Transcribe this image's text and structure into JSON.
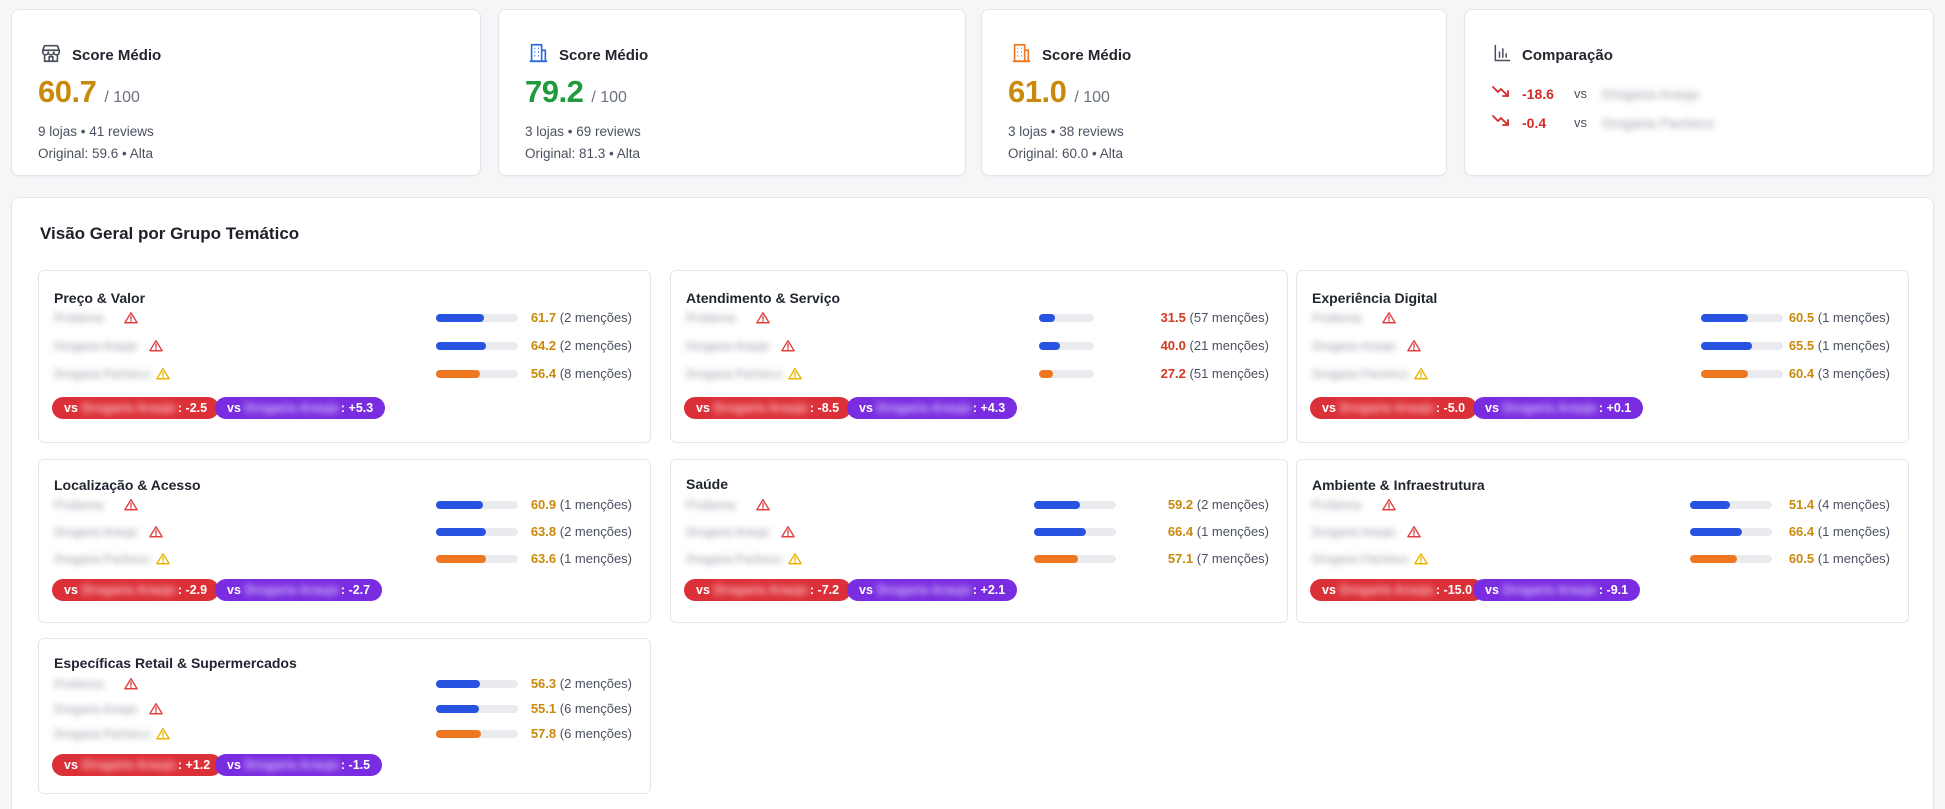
{
  "colors": {
    "score_gold": "#c98a0c",
    "score_green": "#1f9a3c",
    "value_gold": "#c98a0c",
    "value_red": "#d23a1f",
    "bar_blue": "#2853e0",
    "bar_orange": "#f07722",
    "pill_red": "#dc3038",
    "pill_purple": "#7a2de0",
    "warn_red": "#e04040",
    "warn_yellow": "#e8b400"
  },
  "stat_cards": [
    {
      "icon": "store-icon",
      "icon_color": "#4a4f5c",
      "title": "Score Médio",
      "score": "60.7",
      "score_color": "#c98a0c",
      "suffix": "/ 100",
      "line1": "9 lojas • 41 reviews",
      "line2": "Original: 59.6 • Alta"
    },
    {
      "icon": "building-icon",
      "icon_color": "#2f6be0",
      "title": "Score Médio",
      "score": "79.2",
      "score_color": "#1f9a3c",
      "suffix": "/ 100",
      "line1": "3 lojas • 69 reviews",
      "line2": "Original: 81.3 • Alta"
    },
    {
      "icon": "building-icon",
      "icon_color": "#f07722",
      "title": "Score Médio",
      "score": "61.0",
      "score_color": "#c98a0c",
      "suffix": "/ 100",
      "line1": "3 lojas • 38 reviews",
      "line2": "Original: 60.0 • Alta"
    }
  ],
  "comparison": {
    "title": "Comparação",
    "rows": [
      {
        "value": "-18.6",
        "vs": "vs",
        "name": "Drogaria Araujo"
      },
      {
        "value": "-0.4",
        "vs": "vs",
        "name": "Drogaria Pacheco"
      }
    ]
  },
  "overview": {
    "title": "Visão Geral por Grupo Temático",
    "groups": [
      {
        "title": "Preço & Valor",
        "rows": [
          {
            "store": "Profarma",
            "warn": "red",
            "bar": "blue",
            "value": 61.7,
            "value_color": "gold",
            "mentions": "(2 menções)"
          },
          {
            "store": "Drogaria Araujo",
            "warn": "red",
            "bar": "blue",
            "value": 64.2,
            "value_color": "gold",
            "mentions": "(2 menções)"
          },
          {
            "store": "Drogaria Pacheco",
            "warn": "yellow",
            "bar": "orange",
            "value": 56.4,
            "value_color": "gold",
            "mentions": "(8 menções)"
          }
        ],
        "pills": [
          {
            "vs": "vs",
            "name": "Drogaria Araujo",
            "delta": ": -2.5"
          },
          {
            "vs": "vs",
            "name": "Drogaria Araujo",
            "delta": ": +5.3"
          }
        ]
      },
      {
        "title": "Atendimento & Serviço",
        "rows": [
          {
            "store": "Profarma",
            "warn": "red",
            "bar": "blue",
            "value": 31.5,
            "value_color": "red",
            "mentions": "(57 menções)"
          },
          {
            "store": "Drogaria Araujo",
            "warn": "red",
            "bar": "blue",
            "value": 40.0,
            "value_color": "red",
            "mentions": "(21 menções)"
          },
          {
            "store": "Drogaria Pacheco",
            "warn": "yellow",
            "bar": "orange",
            "value": 27.2,
            "value_color": "red",
            "mentions": "(51 menções)"
          }
        ],
        "pills": [
          {
            "vs": "vs",
            "name": "Drogaria Araujo",
            "delta": ": -8.5"
          },
          {
            "vs": "vs",
            "name": "Drogaria Araujo",
            "delta": ": +4.3"
          }
        ]
      },
      {
        "title": "Experiência Digital",
        "rows": [
          {
            "store": "Profarma",
            "warn": "red",
            "bar": "blue",
            "value": 60.5,
            "value_color": "gold",
            "mentions": "(1 menções)"
          },
          {
            "store": "Drogaria Araujo",
            "warn": "red",
            "bar": "blue",
            "value": 65.5,
            "value_color": "gold",
            "mentions": "(1 menções)"
          },
          {
            "store": "Drogaria Pacheco",
            "warn": "yellow",
            "bar": "orange",
            "value": 60.4,
            "value_color": "gold",
            "mentions": "(3 menções)"
          }
        ],
        "pills": [
          {
            "vs": "vs",
            "name": "Drogaria Araujo",
            "delta": ": -5.0"
          },
          {
            "vs": "vs",
            "name": "Drogaria Araujo",
            "delta": ": +0.1"
          }
        ]
      },
      {
        "title": "Localização & Acesso",
        "rows": [
          {
            "store": "Profarma",
            "warn": "red",
            "bar": "blue",
            "value": 60.9,
            "value_color": "gold",
            "mentions": "(1 menções)"
          },
          {
            "store": "Drogaria Araujo",
            "warn": "red",
            "bar": "blue",
            "value": 63.8,
            "value_color": "gold",
            "mentions": "(2 menções)"
          },
          {
            "store": "Drogaria Pacheco",
            "warn": "yellow",
            "bar": "orange",
            "value": 63.6,
            "value_color": "gold",
            "mentions": "(1 menções)"
          }
        ],
        "pills": [
          {
            "vs": "vs",
            "name": "Drogaria Araujo",
            "delta": ": -2.9"
          },
          {
            "vs": "vs",
            "name": "Drogaria Araujo",
            "delta": ": -2.7"
          }
        ]
      },
      {
        "title": "Saúde",
        "rows": [
          {
            "store": "Profarma",
            "warn": "red",
            "bar": "blue",
            "value": 59.2,
            "value_color": "gold",
            "mentions": "(2 menções)"
          },
          {
            "store": "Drogaria Araujo",
            "warn": "red",
            "bar": "blue",
            "value": 66.4,
            "value_color": "gold",
            "mentions": "(1 menções)"
          },
          {
            "store": "Drogaria Pacheco",
            "warn": "yellow",
            "bar": "orange",
            "value": 57.1,
            "value_color": "gold",
            "mentions": "(7 menções)"
          }
        ],
        "pills": [
          {
            "vs": "vs",
            "name": "Drogaria Araujo",
            "delta": ": -7.2"
          },
          {
            "vs": "vs",
            "name": "Drogaria Araujo",
            "delta": ": +2.1"
          }
        ]
      },
      {
        "title": "Ambiente & Infraestrutura",
        "rows": [
          {
            "store": "Profarma",
            "warn": "red",
            "bar": "blue",
            "value": 51.4,
            "value_color": "gold",
            "mentions": "(4 menções)"
          },
          {
            "store": "Drogaria Araujo",
            "warn": "red",
            "bar": "blue",
            "value": 66.4,
            "value_color": "gold",
            "mentions": "(1 menções)"
          },
          {
            "store": "Drogaria Pacheco",
            "warn": "yellow",
            "bar": "orange",
            "value": 60.5,
            "value_color": "gold",
            "mentions": "(1 menções)"
          }
        ],
        "pills": [
          {
            "vs": "vs",
            "name": "Drogaria Araujo",
            "delta": ": -15.0"
          },
          {
            "vs": "vs",
            "name": "Drogaria Araujo",
            "delta": ": -9.1"
          }
        ]
      },
      {
        "title": "Específicas Retail & Supermercados",
        "rows": [
          {
            "store": "Profarma",
            "warn": "red",
            "bar": "blue",
            "value": 56.3,
            "value_color": "gold",
            "mentions": "(2 menções)"
          },
          {
            "store": "Drogaria Araujo",
            "warn": "red",
            "bar": "blue",
            "value": 55.1,
            "value_color": "gold",
            "mentions": "(6 menções)"
          },
          {
            "store": "Drogaria Pacheco",
            "warn": "yellow",
            "bar": "orange",
            "value": 57.8,
            "value_color": "gold",
            "mentions": "(6 menções)"
          }
        ],
        "pills": [
          {
            "vs": "vs",
            "name": "Drogaria Araujo",
            "delta": ": +1.2"
          },
          {
            "vs": "vs",
            "name": "Drogaria Araujo",
            "delta": ": -1.5"
          }
        ]
      }
    ]
  }
}
